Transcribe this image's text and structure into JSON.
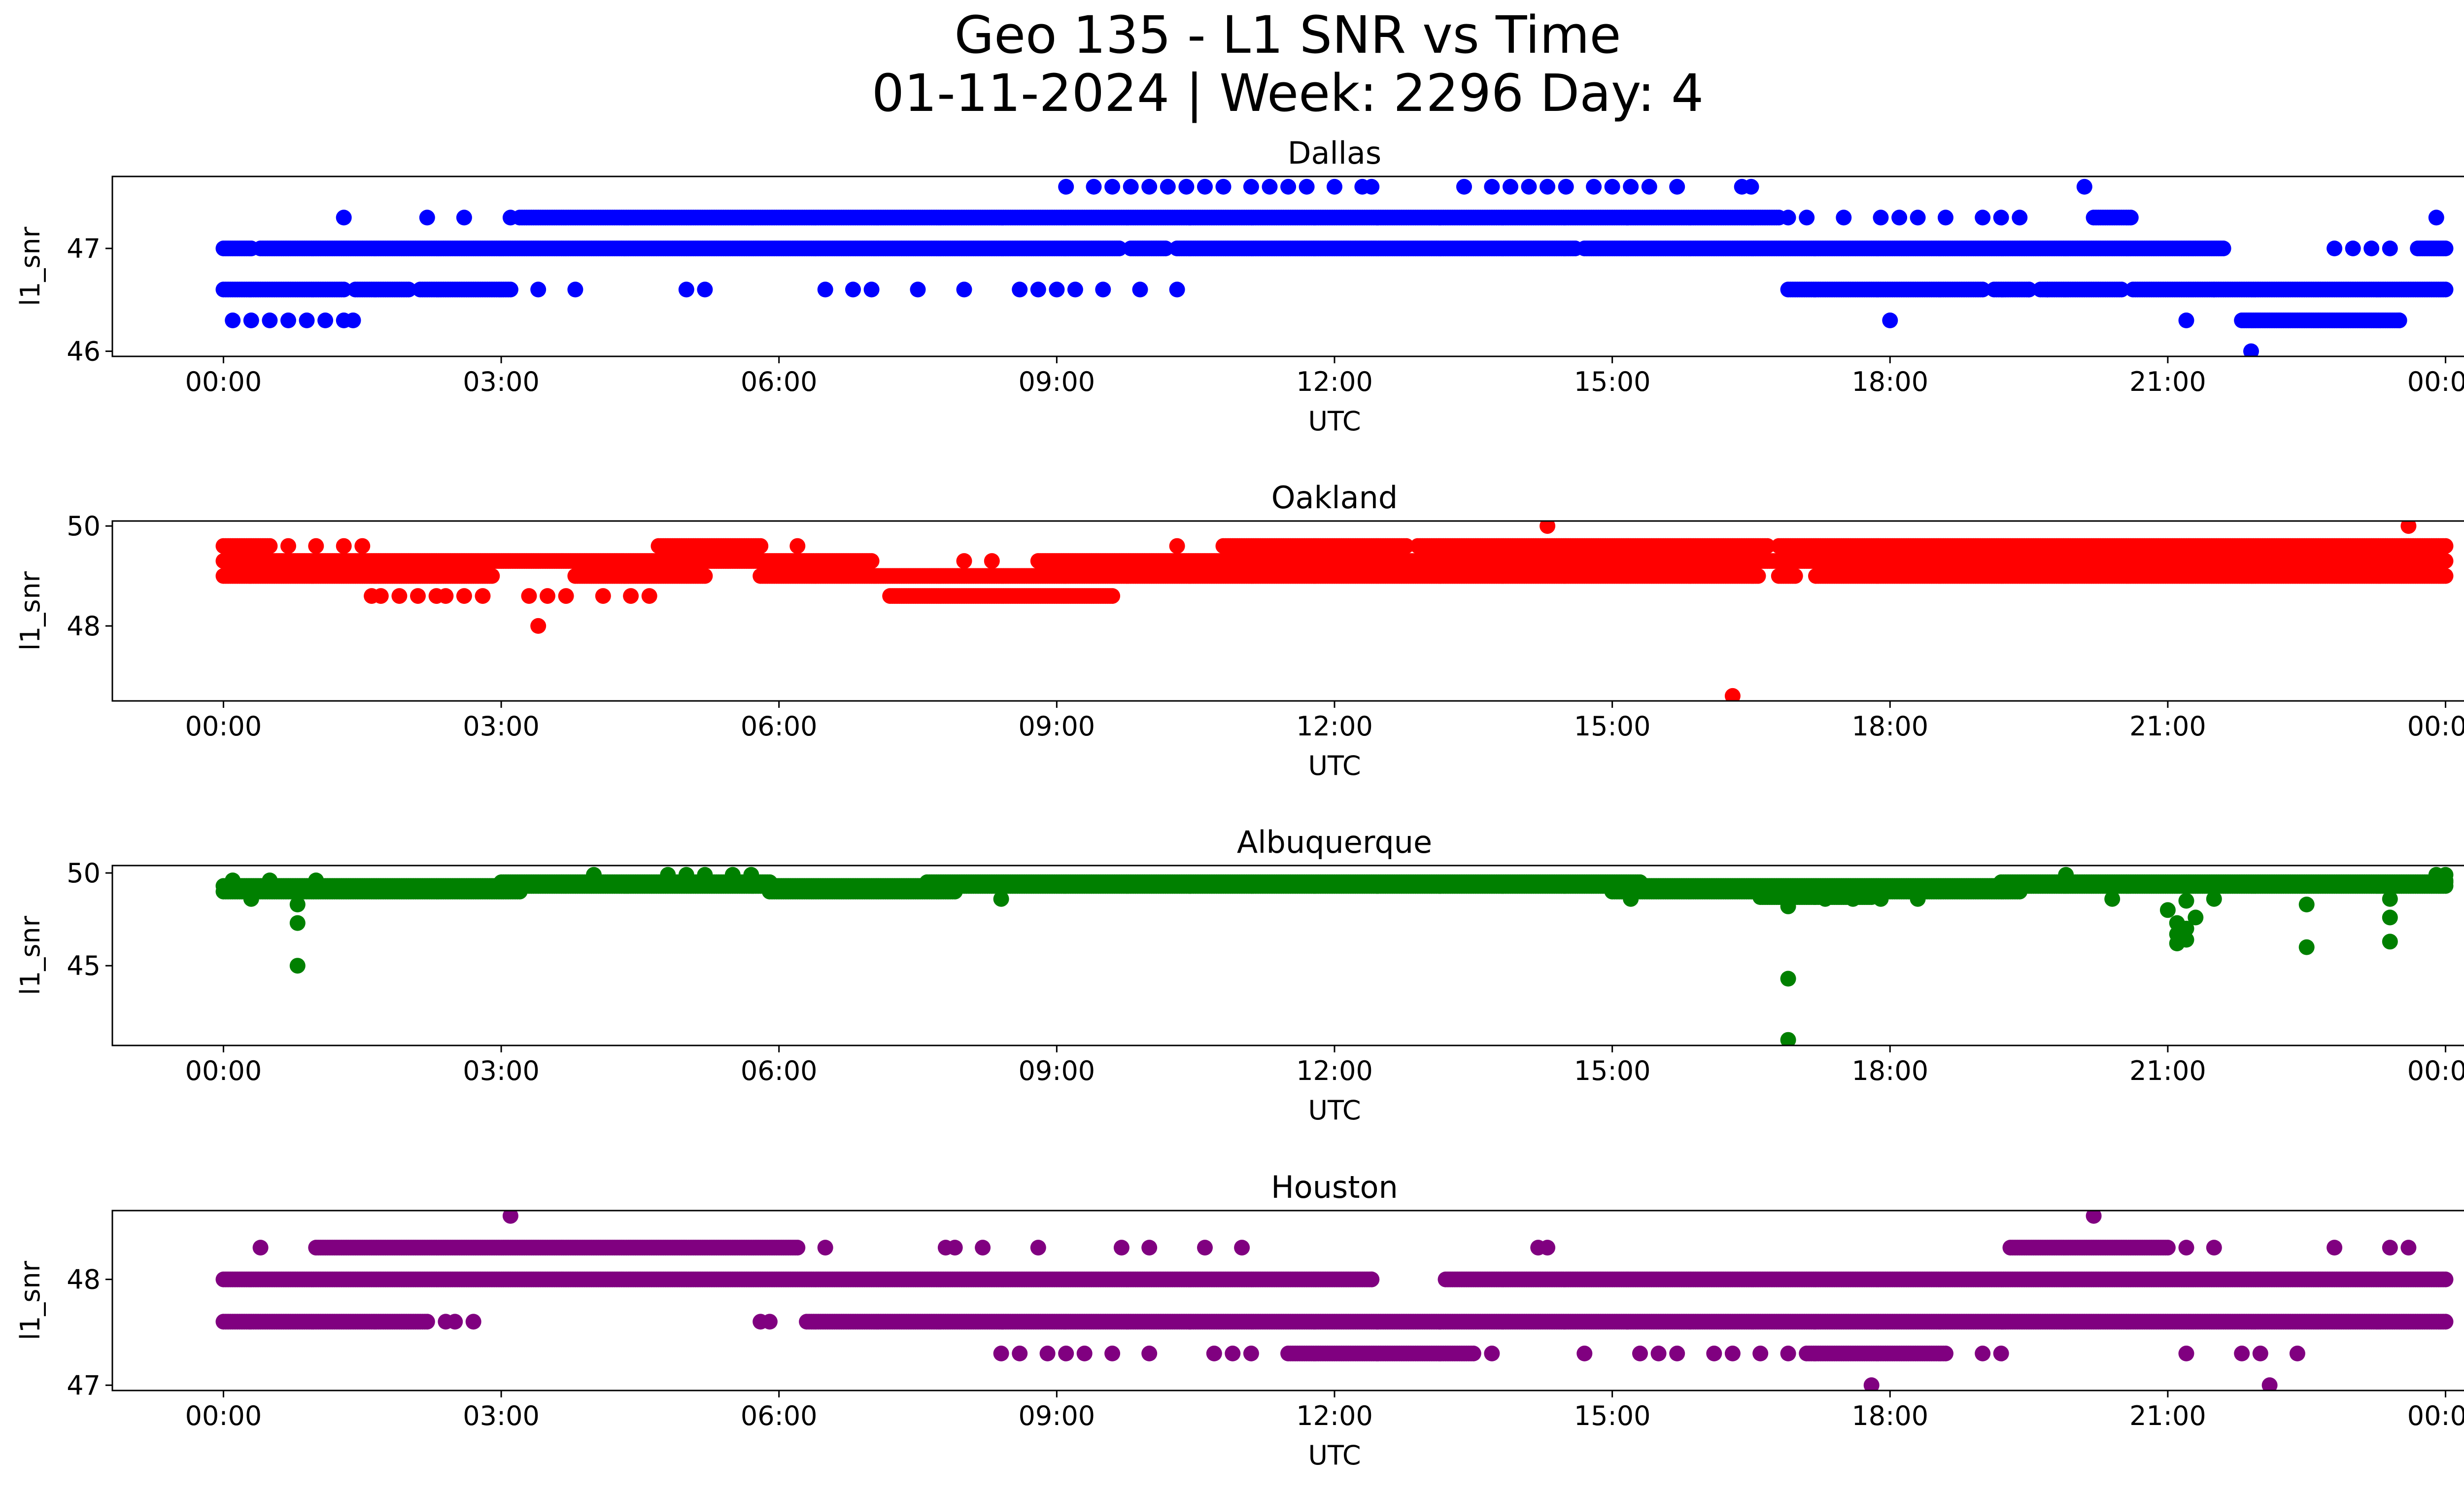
{
  "figure": {
    "title_line1": "Geo 135 - L1 SNR vs Time",
    "title_line2": "01-11-2024 | Week: 2296 Day: 4"
  },
  "chart_data": [
    {
      "type": "scatter",
      "title": "Dallas",
      "xlabel": "UTC",
      "ylabel": "l1_snr",
      "color": "#0000ff",
      "x_unit": "hours UTC",
      "xlim": [
        -1.2,
        25.2
      ],
      "ylim": [
        45.95,
        47.7
      ],
      "xticks": [
        0,
        3,
        6,
        9,
        12,
        15,
        18,
        21,
        24
      ],
      "xtick_labels": [
        "00:00",
        "03:00",
        "06:00",
        "09:00",
        "12:00",
        "15:00",
        "18:00",
        "21:00",
        "00:00"
      ],
      "yticks": [
        46,
        47
      ],
      "bands": [
        {
          "y": 47.0,
          "segments": [
            [
              0.0,
              21.6
            ],
            [
              23.7,
              24.0
            ]
          ],
          "gaps": [
            [
              0.3,
              0.4
            ],
            [
              9.7,
              9.8
            ],
            [
              10.2,
              10.3
            ],
            [
              14.6,
              14.7
            ]
          ]
        },
        {
          "y": 46.6,
          "segments": [
            [
              0.0,
              3.1
            ],
            [
              16.9,
              24.0
            ]
          ],
          "gaps": [
            [
              1.3,
              1.4
            ],
            [
              2.0,
              2.1
            ],
            [
              19.0,
              19.1
            ],
            [
              19.5,
              19.6
            ],
            [
              20.5,
              20.6
            ]
          ]
        },
        {
          "y": 47.3,
          "segments": [
            [
              3.2,
              16.8
            ],
            [
              20.2,
              20.6
            ]
          ],
          "gaps": []
        },
        {
          "y": 46.3,
          "segments": [
            [
              21.8,
              23.5
            ]
          ],
          "gaps": []
        }
      ],
      "points": [
        [
          0.1,
          46.3
        ],
        [
          0.3,
          46.3
        ],
        [
          0.5,
          46.3
        ],
        [
          0.7,
          46.3
        ],
        [
          0.9,
          46.3
        ],
        [
          1.1,
          46.3
        ],
        [
          1.3,
          46.3
        ],
        [
          1.4,
          46.3
        ],
        [
          1.3,
          47.3
        ],
        [
          2.2,
          47.3
        ],
        [
          2.6,
          47.3
        ],
        [
          3.1,
          47.3
        ],
        [
          3.4,
          46.6
        ],
        [
          3.8,
          46.6
        ],
        [
          5.0,
          46.6
        ],
        [
          5.2,
          46.6
        ],
        [
          6.5,
          46.6
        ],
        [
          6.8,
          46.6
        ],
        [
          7.0,
          46.6
        ],
        [
          7.5,
          46.6
        ],
        [
          8.0,
          46.6
        ],
        [
          8.6,
          46.6
        ],
        [
          8.8,
          46.6
        ],
        [
          9.0,
          46.6
        ],
        [
          9.2,
          46.6
        ],
        [
          9.5,
          46.6
        ],
        [
          9.9,
          46.6
        ],
        [
          10.3,
          46.6
        ],
        [
          9.1,
          47.6
        ],
        [
          9.4,
          47.6
        ],
        [
          9.6,
          47.6
        ],
        [
          9.8,
          47.6
        ],
        [
          10.0,
          47.6
        ],
        [
          10.2,
          47.6
        ],
        [
          10.4,
          47.6
        ],
        [
          10.6,
          47.6
        ],
        [
          10.8,
          47.6
        ],
        [
          11.1,
          47.6
        ],
        [
          11.3,
          47.6
        ],
        [
          11.5,
          47.6
        ],
        [
          11.7,
          47.6
        ],
        [
          12.0,
          47.6
        ],
        [
          12.3,
          47.6
        ],
        [
          12.4,
          47.6
        ],
        [
          13.4,
          47.6
        ],
        [
          13.7,
          47.6
        ],
        [
          13.9,
          47.6
        ],
        [
          14.1,
          47.6
        ],
        [
          14.3,
          47.6
        ],
        [
          14.5,
          47.6
        ],
        [
          14.8,
          47.6
        ],
        [
          15.0,
          47.6
        ],
        [
          15.2,
          47.6
        ],
        [
          15.4,
          47.6
        ],
        [
          15.7,
          47.6
        ],
        [
          16.4,
          47.6
        ],
        [
          16.5,
          47.6
        ],
        [
          20.1,
          47.6
        ],
        [
          14.6,
          47.0
        ],
        [
          16.9,
          47.3
        ],
        [
          17.1,
          47.3
        ],
        [
          17.5,
          47.3
        ],
        [
          17.9,
          47.3
        ],
        [
          18.1,
          47.3
        ],
        [
          18.3,
          47.3
        ],
        [
          18.6,
          47.3
        ],
        [
          19.0,
          47.3
        ],
        [
          19.2,
          47.3
        ],
        [
          19.4,
          47.3
        ],
        [
          19.5,
          46.6
        ],
        [
          19.7,
          46.6
        ],
        [
          18.0,
          46.3
        ],
        [
          21.2,
          46.3
        ],
        [
          21.5,
          46.6
        ],
        [
          21.9,
          46.0
        ],
        [
          22.8,
          47.0
        ],
        [
          23.0,
          47.0
        ],
        [
          23.2,
          47.0
        ],
        [
          23.4,
          47.0
        ],
        [
          23.5,
          46.3
        ],
        [
          23.9,
          47.3
        ]
      ]
    },
    {
      "type": "scatter",
      "title": "Oakland",
      "xlabel": "UTC",
      "ylabel": "l1_snr",
      "color": "#ff0000",
      "x_unit": "hours UTC",
      "xlim": [
        -1.2,
        25.2
      ],
      "ylim": [
        46.5,
        50.1
      ],
      "xticks": [
        0,
        3,
        6,
        9,
        12,
        15,
        18,
        21,
        24
      ],
      "xtick_labels": [
        "00:00",
        "03:00",
        "06:00",
        "09:00",
        "12:00",
        "15:00",
        "18:00",
        "21:00",
        "00:00"
      ],
      "yticks": [
        48,
        50
      ],
      "bands": [
        {
          "y": 49.3,
          "segments": [
            [
              0.0,
              7.0
            ],
            [
              8.8,
              24.0
            ]
          ],
          "gaps": []
        },
        {
          "y": 49.0,
          "segments": [
            [
              0.0,
              2.9
            ],
            [
              3.8,
              5.2
            ],
            [
              5.8,
              24.0
            ]
          ],
          "gaps": [
            [
              16.6,
              16.8
            ],
            [
              17.0,
              17.2
            ]
          ]
        },
        {
          "y": 49.6,
          "segments": [
            [
              0.0,
              0.5
            ],
            [
              4.7,
              5.8
            ],
            [
              10.8,
              24.0
            ]
          ],
          "gaps": [
            [
              12.8,
              12.9
            ],
            [
              16.7,
              16.8
            ]
          ]
        },
        {
          "y": 48.6,
          "segments": [
            [
              7.2,
              9.6
            ]
          ],
          "gaps": []
        }
      ],
      "points": [
        [
          0.7,
          49.6
        ],
        [
          1.0,
          49.6
        ],
        [
          1.3,
          49.6
        ],
        [
          1.5,
          49.6
        ],
        [
          1.6,
          48.6
        ],
        [
          1.7,
          48.6
        ],
        [
          1.9,
          48.6
        ],
        [
          2.1,
          48.6
        ],
        [
          2.3,
          48.6
        ],
        [
          2.4,
          48.6
        ],
        [
          2.6,
          48.6
        ],
        [
          2.8,
          48.6
        ],
        [
          3.3,
          48.6
        ],
        [
          3.5,
          48.6
        ],
        [
          3.7,
          48.6
        ],
        [
          4.1,
          48.6
        ],
        [
          4.4,
          48.6
        ],
        [
          4.6,
          48.6
        ],
        [
          3.4,
          48.0
        ],
        [
          6.2,
          49.6
        ],
        [
          8.0,
          49.3
        ],
        [
          8.3,
          49.3
        ],
        [
          10.3,
          49.6
        ],
        [
          14.3,
          50.0
        ],
        [
          16.3,
          46.6
        ],
        [
          23.6,
          50.0
        ]
      ]
    },
    {
      "type": "scatter",
      "title": "Albuquerque",
      "xlabel": "UTC",
      "ylabel": "l1_snr",
      "color": "#008000",
      "x_unit": "hours UTC",
      "xlim": [
        -1.2,
        25.2
      ],
      "ylim": [
        40.7,
        50.4
      ],
      "xticks": [
        0,
        3,
        6,
        9,
        12,
        15,
        18,
        21,
        24
      ],
      "xtick_labels": [
        "00:00",
        "03:00",
        "06:00",
        "09:00",
        "12:00",
        "15:00",
        "18:00",
        "21:00",
        "00:00"
      ],
      "yticks": [
        45,
        50
      ],
      "bands": [
        {
          "y": 49.0,
          "segments": [
            [
              0.0,
              3.2
            ],
            [
              5.9,
              7.9
            ],
            [
              15.0,
              19.4
            ]
          ],
          "gaps": []
        },
        {
          "y": 49.3,
          "segments": [
            [
              0.0,
              24.0
            ]
          ],
          "gaps": []
        },
        {
          "y": 49.5,
          "segments": [
            [
              3.0,
              5.9
            ],
            [
              7.6,
              15.3
            ],
            [
              19.2,
              24.0
            ]
          ],
          "gaps": []
        },
        {
          "y": 48.7,
          "segments": [
            [
              16.6,
              17.8
            ]
          ],
          "gaps": []
        }
      ],
      "points": [
        [
          0.1,
          49.6
        ],
        [
          0.3,
          48.6
        ],
        [
          0.5,
          49.6
        ],
        [
          0.8,
          48.3
        ],
        [
          0.8,
          47.3
        ],
        [
          0.8,
          45.0
        ],
        [
          1.0,
          49.6
        ],
        [
          4.0,
          49.9
        ],
        [
          4.8,
          49.9
        ],
        [
          5.0,
          49.9
        ],
        [
          5.2,
          49.9
        ],
        [
          5.5,
          49.9
        ],
        [
          5.7,
          49.9
        ],
        [
          8.4,
          48.6
        ],
        [
          15.2,
          48.6
        ],
        [
          16.9,
          48.2
        ],
        [
          16.9,
          44.3
        ],
        [
          16.9,
          41.0
        ],
        [
          17.3,
          48.6
        ],
        [
          17.6,
          48.6
        ],
        [
          17.9,
          48.6
        ],
        [
          18.3,
          48.6
        ],
        [
          19.9,
          49.9
        ],
        [
          20.4,
          48.6
        ],
        [
          21.0,
          48.0
        ],
        [
          21.1,
          47.3
        ],
        [
          21.1,
          46.7
        ],
        [
          21.1,
          46.2
        ],
        [
          21.2,
          48.5
        ],
        [
          21.2,
          46.4
        ],
        [
          21.2,
          47.0
        ],
        [
          21.3,
          47.6
        ],
        [
          21.5,
          48.6
        ],
        [
          22.5,
          48.3
        ],
        [
          22.5,
          46.0
        ],
        [
          23.4,
          48.6
        ],
        [
          23.4,
          47.6
        ],
        [
          23.4,
          46.3
        ],
        [
          23.9,
          49.9
        ],
        [
          24.0,
          49.9
        ],
        [
          24.0,
          49.6
        ]
      ]
    },
    {
      "type": "scatter",
      "title": "Houston",
      "xlabel": "UTC",
      "ylabel": "l1_snr",
      "color": "#800080",
      "x_unit": "hours UTC",
      "xlim": [
        -1.2,
        25.2
      ],
      "ylim": [
        46.95,
        48.65
      ],
      "xticks": [
        0,
        3,
        6,
        9,
        12,
        15,
        18,
        21,
        24
      ],
      "xtick_labels": [
        "00:00",
        "03:00",
        "06:00",
        "09:00",
        "12:00",
        "15:00",
        "18:00",
        "21:00",
        "00:00"
      ],
      "yticks": [
        47,
        48
      ],
      "bands": [
        {
          "y": 48.0,
          "segments": [
            [
              0.0,
              12.4
            ],
            [
              13.2,
              24.0
            ]
          ],
          "gaps": []
        },
        {
          "y": 47.6,
          "segments": [
            [
              0.0,
              2.2
            ],
            [
              6.3,
              24.0
            ]
          ],
          "gaps": []
        },
        {
          "y": 48.3,
          "segments": [
            [
              1.0,
              6.2
            ],
            [
              19.3,
              21.0
            ]
          ],
          "gaps": []
        },
        {
          "y": 47.3,
          "segments": [
            [
              11.5,
              13.5
            ],
            [
              17.1,
              18.6
            ]
          ],
          "gaps": []
        }
      ],
      "points": [
        [
          0.4,
          48.3
        ],
        [
          2.4,
          47.6
        ],
        [
          2.5,
          47.6
        ],
        [
          2.7,
          47.6
        ],
        [
          3.1,
          48.6
        ],
        [
          5.8,
          47.6
        ],
        [
          5.9,
          47.6
        ],
        [
          6.5,
          48.3
        ],
        [
          7.8,
          48.3
        ],
        [
          7.9,
          48.3
        ],
        [
          8.2,
          48.3
        ],
        [
          8.4,
          47.3
        ],
        [
          8.6,
          47.3
        ],
        [
          8.8,
          48.3
        ],
        [
          8.9,
          47.3
        ],
        [
          9.1,
          47.3
        ],
        [
          9.3,
          47.3
        ],
        [
          9.6,
          47.3
        ],
        [
          9.7,
          48.3
        ],
        [
          10.0,
          48.3
        ],
        [
          10.0,
          47.3
        ],
        [
          10.6,
          48.3
        ],
        [
          10.7,
          47.3
        ],
        [
          10.9,
          47.3
        ],
        [
          11.0,
          48.3
        ],
        [
          11.1,
          47.3
        ],
        [
          12.4,
          48.0
        ],
        [
          13.7,
          47.3
        ],
        [
          14.2,
          48.3
        ],
        [
          14.3,
          48.3
        ],
        [
          14.7,
          47.3
        ],
        [
          15.3,
          47.3
        ],
        [
          15.5,
          47.3
        ],
        [
          15.7,
          47.3
        ],
        [
          16.1,
          47.3
        ],
        [
          16.3,
          47.3
        ],
        [
          16.6,
          47.3
        ],
        [
          16.9,
          47.3
        ],
        [
          17.8,
          47.0
        ],
        [
          19.0,
          47.3
        ],
        [
          19.2,
          47.3
        ],
        [
          20.2,
          48.6
        ],
        [
          21.2,
          48.3
        ],
        [
          21.2,
          47.3
        ],
        [
          21.5,
          48.3
        ],
        [
          21.8,
          47.3
        ],
        [
          22.0,
          47.3
        ],
        [
          22.1,
          47.0
        ],
        [
          22.4,
          47.3
        ],
        [
          22.8,
          48.3
        ],
        [
          23.4,
          48.3
        ],
        [
          23.6,
          48.3
        ]
      ]
    }
  ]
}
